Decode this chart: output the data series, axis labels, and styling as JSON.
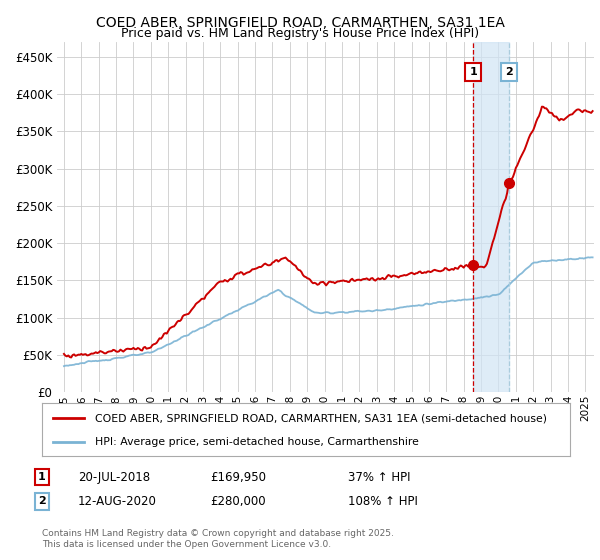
{
  "title": "COED ABER, SPRINGFIELD ROAD, CARMARTHEN, SA31 1EA",
  "subtitle": "Price paid vs. HM Land Registry's House Price Index (HPI)",
  "ylabel_ticks": [
    "£0",
    "£50K",
    "£100K",
    "£150K",
    "£200K",
    "£250K",
    "£300K",
    "£350K",
    "£400K",
    "£450K"
  ],
  "ytick_values": [
    0,
    50000,
    100000,
    150000,
    200000,
    250000,
    300000,
    350000,
    400000,
    450000
  ],
  "ylim": [
    0,
    470000
  ],
  "xlim_start": 1994.6,
  "xlim_end": 2025.5,
  "bg_color": "#f0f0f0",
  "chart_bg_color": "#ffffff",
  "red_line_color": "#cc0000",
  "blue_line_color": "#7ab3d4",
  "grid_color": "#cccccc",
  "shade_color": "#d0e4f5",
  "marker1_x": 2018.55,
  "marker1_y": 169950,
  "marker1_label": "1",
  "marker1_date": "20-JUL-2018",
  "marker1_price": "£169,950",
  "marker1_hpi": "37% ↑ HPI",
  "marker2_x": 2020.62,
  "marker2_y": 280000,
  "marker2_label": "2",
  "marker2_date": "12-AUG-2020",
  "marker2_price": "£280,000",
  "marker2_hpi": "108% ↑ HPI",
  "legend_red_label": "COED ABER, SPRINGFIELD ROAD, CARMARTHEN, SA31 1EA (semi-detached house)",
  "legend_blue_label": "HPI: Average price, semi-detached house, Carmarthenshire",
  "footer": "Contains HM Land Registry data © Crown copyright and database right 2025.\nThis data is licensed under the Open Government Licence v3.0."
}
